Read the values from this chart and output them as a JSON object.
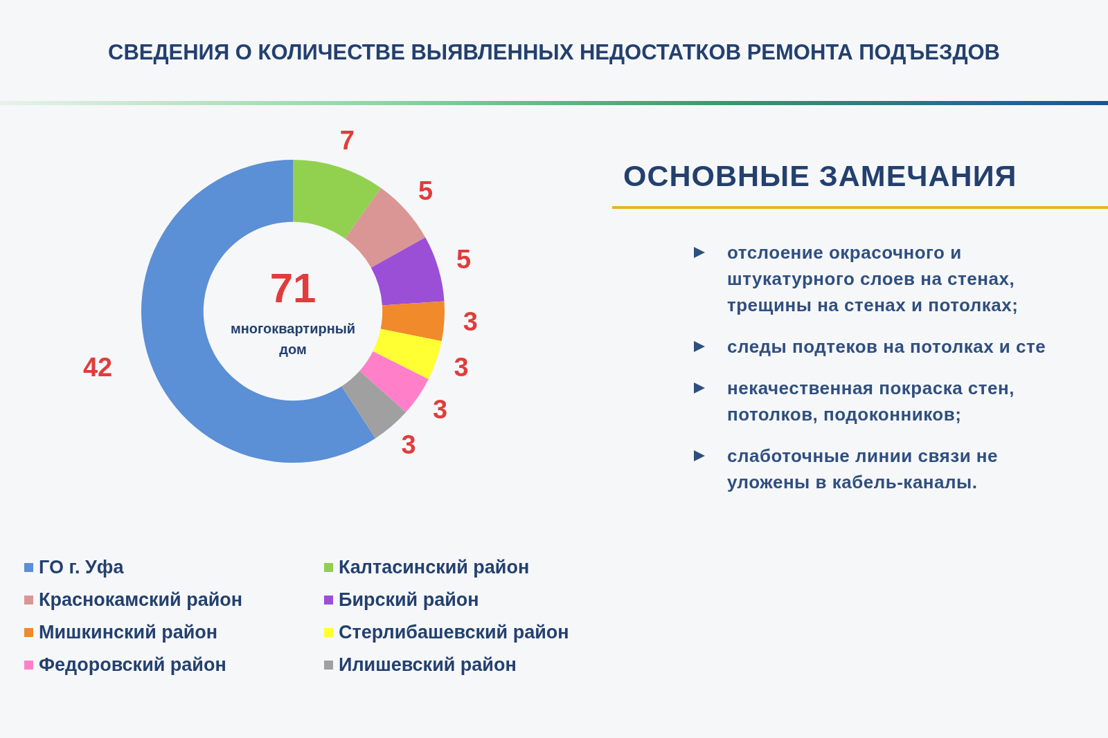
{
  "chart_data": [
    {
      "type": "donut",
      "title": "СВЕДЕНИЯ О КОЛИЧЕСТВЕ ВЫЯВЛЕННЫХ НЕДОСТАТКОВ РЕМОНТА ПОДЪЕЗДОВ",
      "categories": [
        "ГО г. Уфа",
        "Калтасинский район",
        "Краснокамский район",
        "Бирский район",
        "Мишкинский район",
        "Стерлибашевский район",
        "Федоровский район",
        "Илишевский район"
      ],
      "values": [
        42,
        7,
        5,
        5,
        3,
        3,
        3,
        3
      ],
      "colors": [
        "#5b8fd6",
        "#92d050",
        "#d99694",
        "#9b4fd6",
        "#f08a2a",
        "#ffff33",
        "#ff80c8",
        "#a0a0a0"
      ],
      "data_labels": true,
      "legend": "bottom",
      "annotations": [
        "71",
        "многоквартирный дом"
      ]
    },
    {
      "type": "other",
      "title": "ОСНОВНЫЕ  ЗАМЕЧАНИЯ",
      "annotations": [
        "отслоение окрасочного и штукатурного слоев на стенах, трещины на стенах и потолках;",
        "следы подтеков на потолках и сте",
        "некачественная покраска стен, потолков, подоконников;",
        "слаботочные линии связи не уложены в кабель-каналы."
      ]
    }
  ]
}
